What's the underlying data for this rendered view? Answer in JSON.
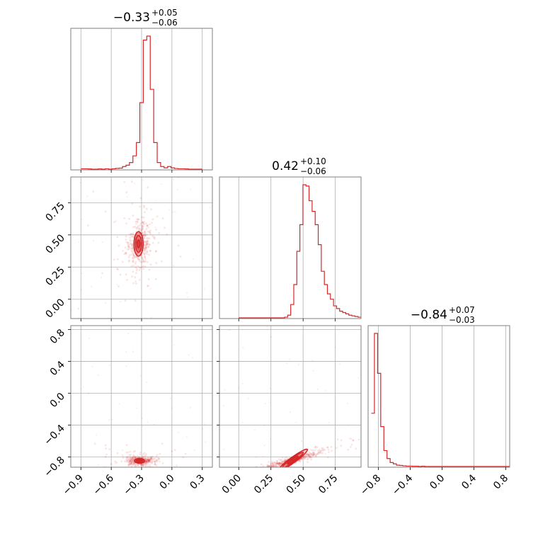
{
  "chart_data": {
    "type": "corner",
    "color": "#d62728",
    "parameters": [
      {
        "median": "−0.33",
        "plus": "+0.05",
        "minus": "−0.06",
        "range": [
          -1.0,
          0.4
        ],
        "ticks": [
          -0.9,
          -0.6,
          -0.3,
          0.0,
          0.3
        ],
        "tick_labels": [
          "−0.9",
          "−0.6",
          "−0.3",
          "0.0",
          "0.3"
        ]
      },
      {
        "median": "0.42",
        "plus": "+0.10",
        "minus": "−0.06",
        "range": [
          -0.15,
          0.95
        ],
        "ticks": [
          0.0,
          0.25,
          0.5,
          0.75
        ],
        "tick_labels": [
          "0.00",
          "0.25",
          "0.50",
          "0.75"
        ]
      },
      {
        "median": "−0.84",
        "plus": "+0.07",
        "minus": "−0.03",
        "range": [
          -0.93,
          0.85
        ],
        "ticks": [
          -0.8,
          -0.4,
          0.0,
          0.4,
          0.8
        ],
        "tick_labels": [
          "−0.8",
          "−0.4",
          "0.0",
          "0.4",
          "0.8"
        ]
      }
    ],
    "histograms": [
      {
        "x_start": -0.9,
        "x_end": 0.3,
        "values": [
          0.3,
          0.3,
          0.2,
          0,
          0,
          0.2,
          0,
          0.3,
          0,
          0.3,
          0.6,
          0.8,
          2,
          3,
          5,
          10,
          20,
          50,
          97,
          100,
          60,
          20,
          5,
          2,
          1,
          2,
          1,
          0.5,
          0.3,
          0.3,
          0.2,
          0,
          0,
          0,
          0
        ]
      },
      {
        "x_start": 0.0,
        "x_end": 0.95,
        "values": [
          0,
          0,
          0,
          0,
          0,
          0,
          0,
          0,
          0,
          0,
          0,
          0,
          0,
          0,
          0,
          0.5,
          2,
          10,
          25,
          50,
          70,
          100,
          99,
          88,
          80,
          70,
          55,
          35,
          25,
          18,
          14,
          9,
          7,
          5,
          4,
          3,
          2,
          1.5,
          1,
          0.5
        ]
      },
      {
        "x_start": -0.89,
        "x_end": 0.85,
        "values": [
          40,
          100,
          70,
          30,
          12,
          6,
          3,
          2,
          1,
          0.8,
          0.5,
          0.3,
          0.3,
          0.2,
          0.2,
          0,
          0.2,
          0,
          0,
          0,
          0,
          0,
          0,
          0,
          0,
          0,
          0,
          0,
          0,
          0,
          0,
          0,
          0,
          0,
          0,
          0,
          0,
          0,
          0,
          0,
          0,
          0,
          0,
          0
        ]
      }
    ],
    "scatter_panels": [
      {
        "row": 1,
        "col": 0,
        "center": [
          -0.33,
          0.43
        ],
        "spread": [
          0.05,
          0.07
        ],
        "tilt": 0.15,
        "contours": [
          [
            0.045,
            0.095
          ],
          [
            0.03,
            0.065
          ],
          [
            0.015,
            0.03
          ]
        ]
      },
      {
        "row": 2,
        "col": 0,
        "center": [
          -0.32,
          -0.85
        ],
        "spread": [
          0.06,
          0.025
        ],
        "tilt": 0.0,
        "contours": [
          [
            0.05,
            0.03
          ],
          [
            0.035,
            0.02
          ],
          [
            0.02,
            0.01
          ]
        ]
      },
      {
        "row": 2,
        "col": 1,
        "center": [
          0.42,
          -0.84
        ],
        "spread": [
          0.09,
          0.03
        ],
        "tilt": 0.6,
        "contours": [
          [
            0.14,
            0.035
          ],
          [
            0.1,
            0.025
          ],
          [
            0.05,
            0.015
          ]
        ]
      }
    ]
  }
}
